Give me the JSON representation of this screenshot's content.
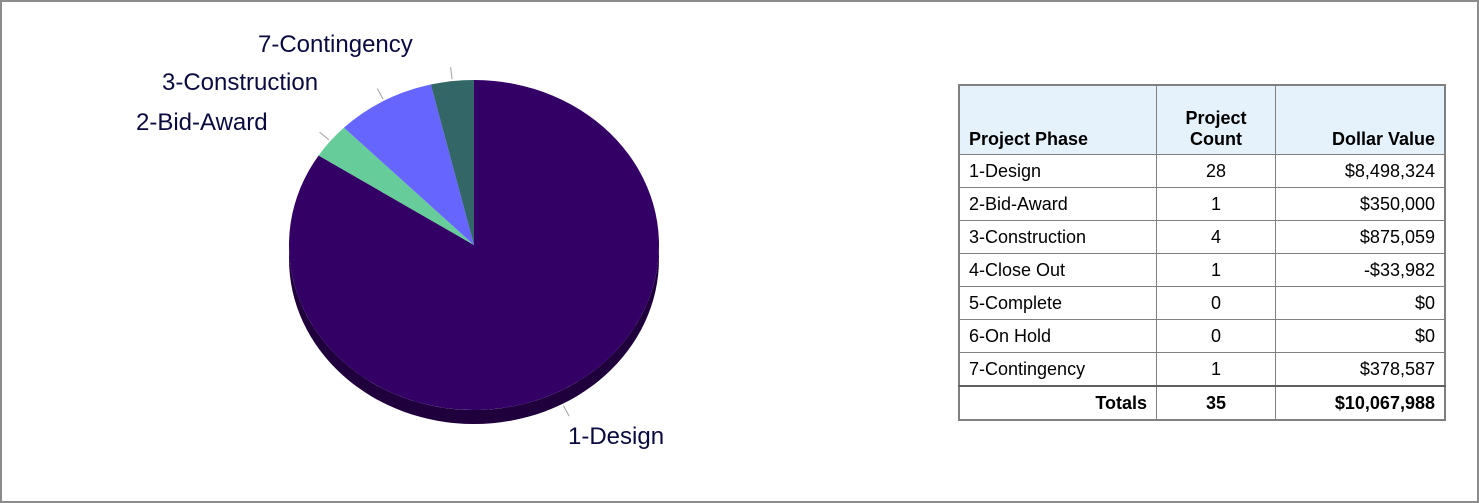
{
  "chart_data": {
    "type": "pie",
    "slices": [
      {
        "label": "1-Design",
        "value": 8498324,
        "color": "#330066"
      },
      {
        "label": "2-Bid-Award",
        "value": 350000,
        "color": "#66cc99"
      },
      {
        "label": "3-Construction",
        "value": 875059,
        "color": "#6666ff"
      },
      {
        "label": "7-Contingency",
        "value": 378587,
        "color": "#336666"
      }
    ]
  },
  "table": {
    "headers": {
      "phase": "Project Phase",
      "count_line1": "Project",
      "count_line2": "Count",
      "dollar": "Dollar Value"
    },
    "rows": [
      {
        "phase": "1-Design",
        "count": "28",
        "dollar": "$8,498,324"
      },
      {
        "phase": "2-Bid-Award",
        "count": "1",
        "dollar": "$350,000"
      },
      {
        "phase": "3-Construction",
        "count": "4",
        "dollar": "$875,059"
      },
      {
        "phase": "4-Close Out",
        "count": "1",
        "dollar": "-$33,982"
      },
      {
        "phase": "5-Complete",
        "count": "0",
        "dollar": "$0"
      },
      {
        "phase": "6-On Hold",
        "count": "0",
        "dollar": "$0"
      },
      {
        "phase": "7-Contingency",
        "count": "1",
        "dollar": "$378,587"
      }
    ],
    "totals": {
      "phase": "Totals",
      "count": "35",
      "dollar": "$10,067,988"
    }
  }
}
